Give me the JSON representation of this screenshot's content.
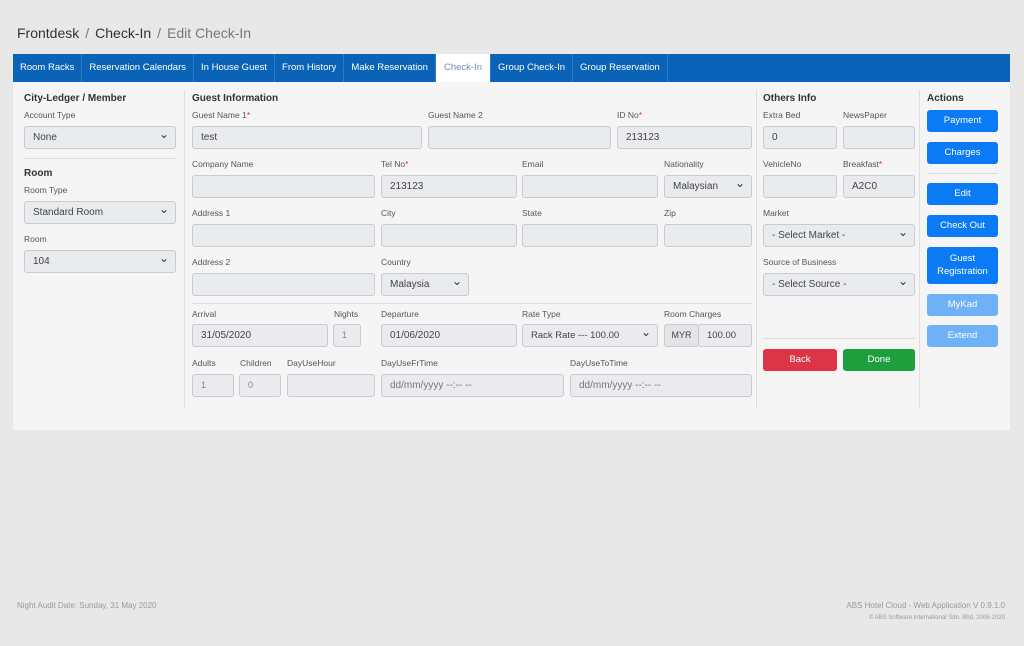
{
  "breadcrumb": {
    "root": "Frontdesk",
    "parent": "Check-In",
    "current": "Edit Check-In"
  },
  "tabs": [
    "Room Racks",
    "Reservation Calendars",
    "In House Guest",
    "From History",
    "Make Reservation",
    "Check-In",
    "Group Check-In",
    "Group Reservation"
  ],
  "left": {
    "section1": "City-Ledger / Member",
    "account_type_label": "Account Type",
    "account_type": "None",
    "section2": "Room",
    "room_type_label": "Room Type",
    "room_type": "Standard Room",
    "room_label": "Room",
    "room": "104"
  },
  "guest": {
    "title": "Guest Information",
    "guest_name1_label": "Guest Name 1",
    "guest_name1": "test",
    "guest_name2_label": "Guest Name 2",
    "guest_name2": "",
    "id_no_label": "ID No",
    "id_no": "213123",
    "company_label": "Company Name",
    "company": "",
    "tel_label": "Tel No",
    "tel": "213123",
    "email_label": "Email",
    "email": "",
    "nationality_label": "Nationality",
    "nationality": "Malaysian",
    "address1_label": "Address 1",
    "city_label": "City",
    "state_label": "State",
    "zip_label": "Zip",
    "address2_label": "Address 2",
    "country_label": "Country",
    "country": "Malaysia",
    "arrival_label": "Arrival",
    "arrival": "31/05/2020",
    "nights_label": "Nights",
    "nights": "1",
    "departure_label": "Departure",
    "departure": "01/06/2020",
    "rate_type_label": "Rate Type",
    "rate_type": "Rack Rate --- 100.00",
    "room_charges_label": "Room Charges",
    "currency": "MYR",
    "room_charges": "100.00",
    "adults_label": "Adults",
    "adults": "1",
    "children_label": "Children",
    "children": "0",
    "dayusehour_label": "DayUseHour",
    "dayusefr_label": "DayUseFrTime",
    "dayusefr_placeholder": "dd/mm/yyyy --:-- --",
    "dayuseto_label": "DayUseToTime",
    "dayuseto_placeholder": "dd/mm/yyyy --:-- --"
  },
  "others": {
    "title": "Others Info",
    "extra_bed_label": "Extra Bed",
    "extra_bed": "0",
    "newspaper_label": "NewsPaper",
    "vehicle_label": "VehicleNo",
    "breakfast_label": "Breakfast",
    "breakfast": "A2C0",
    "market_label": "Market",
    "market": "- Select Market -",
    "source_label": "Source of Business",
    "source": "- Select Source -",
    "back": "Back",
    "done": "Done"
  },
  "actions": {
    "title": "Actions",
    "payment": "Payment",
    "charges": "Charges",
    "edit": "Edit",
    "checkout": "Check Out",
    "guest_registration": "Guest Registration",
    "mykad": "MyKad",
    "extend": "Extend"
  },
  "footer": {
    "audit": "Night Audit Date: Sunday, 31 May 2020",
    "app": "ABS Hotel Cloud - Web Application V 0.9.1.0",
    "copyright": "© ABS Software International Sdn. Bhd. 2006-2020"
  },
  "req_mark": "*"
}
